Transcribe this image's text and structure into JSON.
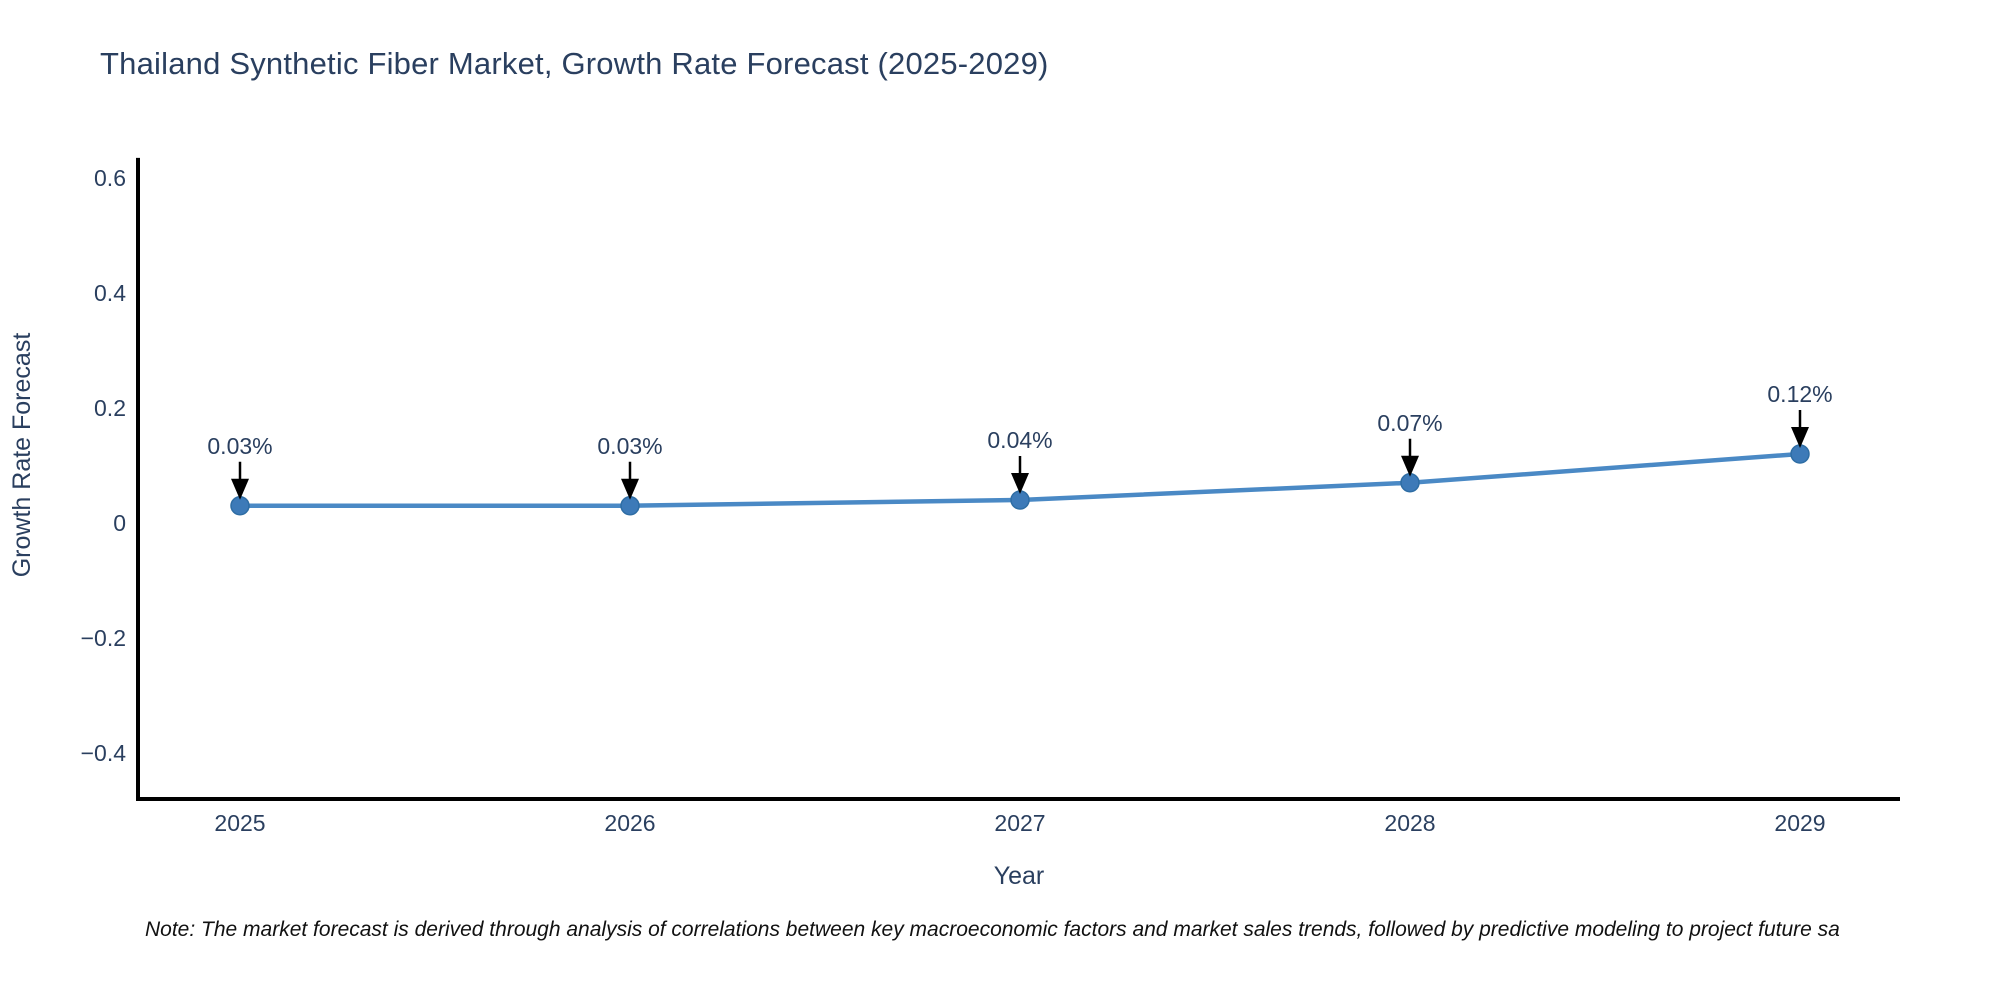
{
  "title": "Thailand Synthetic Fiber Market, Growth Rate Forecast (2025-2029)",
  "note": "Note: The market forecast is derived through analysis of correlations between key macroeconomic factors and market sales trends, followed by predictive modeling to project future sa",
  "chart_data": {
    "type": "line",
    "title": "Thailand Synthetic Fiber Market, Growth Rate Forecast (2025-2029)",
    "xlabel": "Year",
    "ylabel": "Growth Rate Forecast",
    "categories": [
      "2025",
      "2026",
      "2027",
      "2028",
      "2029"
    ],
    "x": [
      2025,
      2026,
      2027,
      2028,
      2029
    ],
    "values": [
      0.03,
      0.03,
      0.04,
      0.07,
      0.12
    ],
    "annotations": [
      "0.03%",
      "0.03%",
      "0.04%",
      "0.07%",
      "0.12%"
    ],
    "yticks": [
      0.6,
      0.4,
      0.2,
      0,
      -0.2,
      -0.4
    ],
    "ytick_labels": [
      "0.6",
      "0.4",
      "0.2",
      "0",
      "−0.2",
      "−0.4"
    ],
    "ylim": [
      -0.48,
      0.635
    ],
    "grid": false,
    "legend_position": "none",
    "colors": {
      "line": "#4a89c5",
      "marker": "#3d7ab8",
      "marker_edge": "#2e6da4",
      "axis": "#000000",
      "tick_text": "#2a3f5f",
      "title_text": "#2a3f5f",
      "annotation_text": "#2a3f5f",
      "annotation_arrow": "#000000",
      "note_text": "#111111",
      "background": "#ffffff"
    }
  }
}
